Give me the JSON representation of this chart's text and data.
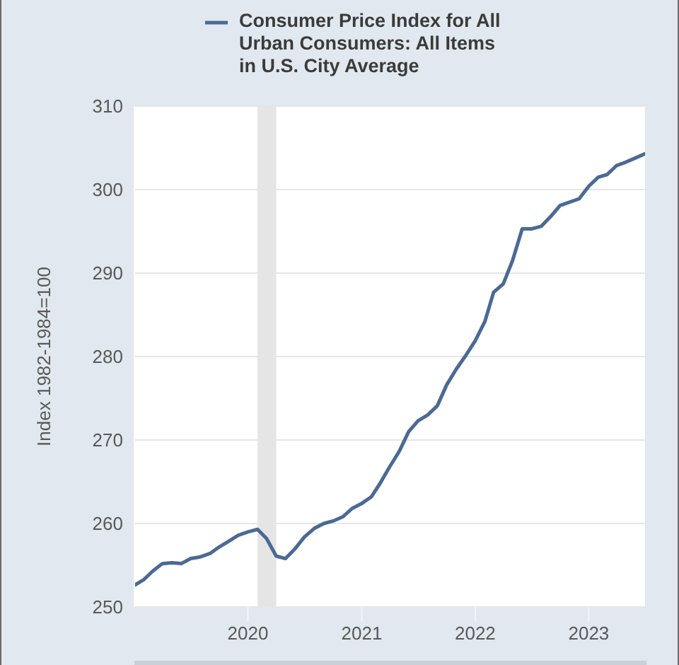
{
  "chart_data": {
    "type": "line",
    "x": [
      "2019-01",
      "2019-02",
      "2019-03",
      "2019-04",
      "2019-05",
      "2019-06",
      "2019-07",
      "2019-08",
      "2019-09",
      "2019-10",
      "2019-11",
      "2019-12",
      "2020-01",
      "2020-02",
      "2020-03",
      "2020-04",
      "2020-05",
      "2020-06",
      "2020-07",
      "2020-08",
      "2020-09",
      "2020-10",
      "2020-11",
      "2020-12",
      "2021-01",
      "2021-02",
      "2021-03",
      "2021-04",
      "2021-05",
      "2021-06",
      "2021-07",
      "2021-08",
      "2021-09",
      "2021-10",
      "2021-11",
      "2021-12",
      "2022-01",
      "2022-02",
      "2022-03",
      "2022-04",
      "2022-05",
      "2022-06",
      "2022-07",
      "2022-08",
      "2022-09",
      "2022-10",
      "2022-11",
      "2022-12",
      "2023-01",
      "2023-02",
      "2023-03",
      "2023-04",
      "2023-05",
      "2023-06",
      "2023-07"
    ],
    "series": [
      {
        "name": "Consumer Price Index for All Urban Consumers: All Items in U.S. City Average",
        "color": "#4b6a93",
        "values": [
          252.6,
          253.3,
          254.3,
          255.2,
          255.3,
          255.2,
          255.8,
          256.0,
          256.4,
          257.2,
          257.9,
          258.6,
          259.0,
          259.3,
          258.2,
          256.1,
          255.8,
          257.0,
          258.4,
          259.4,
          260.0,
          260.3,
          260.8,
          261.8,
          262.4,
          263.2,
          264.8,
          266.8,
          268.6,
          271.0,
          272.3,
          273.0,
          274.1,
          276.6,
          278.5,
          280.1,
          281.9,
          284.2,
          287.7,
          288.7,
          291.5,
          295.3,
          295.3,
          295.6,
          296.8,
          298.1,
          298.5,
          298.9,
          300.4,
          301.5,
          301.8,
          302.9,
          303.3,
          303.8,
          304.3
        ]
      }
    ],
    "ylabel": "Index 1982-1984=100",
    "xlim": [
      "2019-01",
      "2023-07"
    ],
    "xticks": [
      "2020",
      "2021",
      "2022",
      "2023"
    ],
    "ylim": [
      250,
      310
    ],
    "yticks": [
      250,
      260,
      270,
      280,
      290,
      300,
      310
    ],
    "grid": "y",
    "legend": "top",
    "marker": "none",
    "line_style": "solid",
    "bands": [
      {
        "axis": "x",
        "from": "2020-02",
        "to": "2020-04",
        "color": "#e5e5e5"
      }
    ]
  }
}
